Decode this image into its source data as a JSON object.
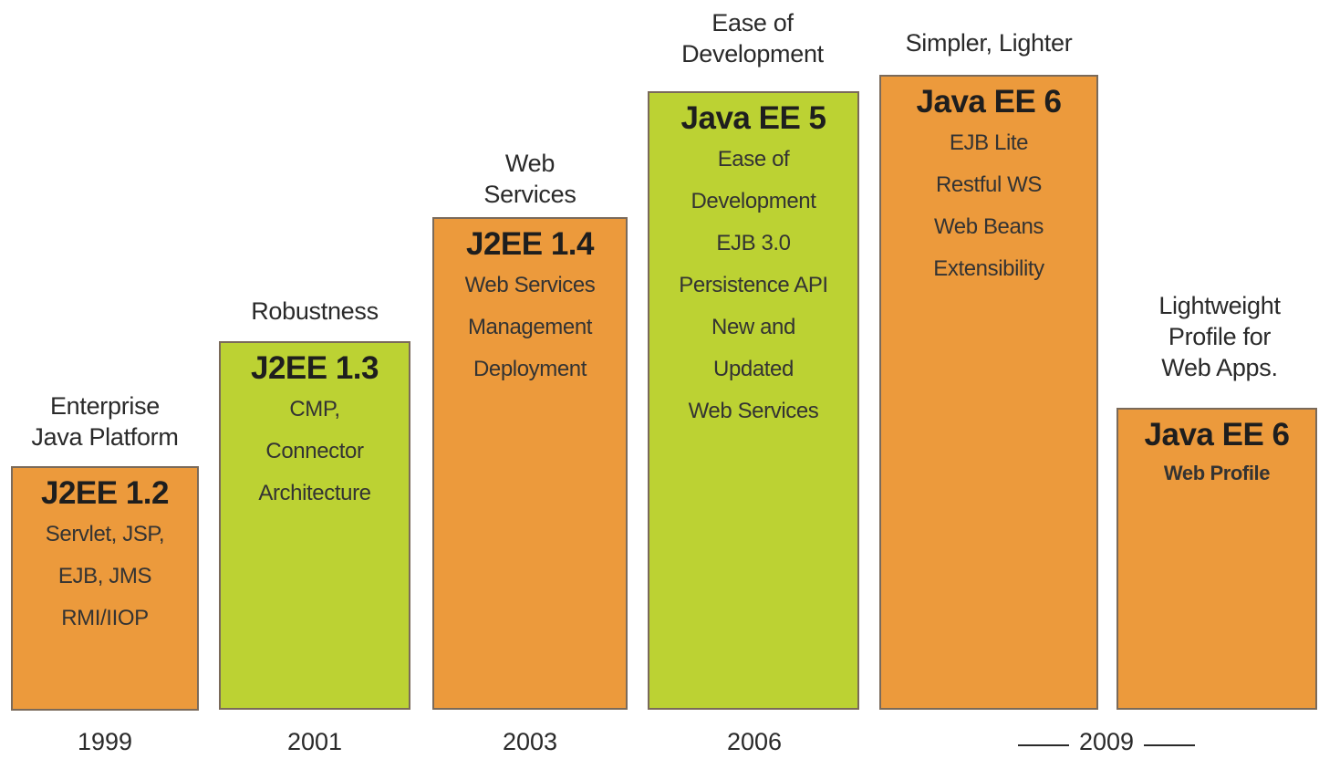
{
  "releases": [
    {
      "theme": "Enterprise\nJava Platform",
      "name": "J2EE 1.2",
      "features": [
        "Servlet, JSP,",
        "EJB, JMS",
        "RMI/IIOP"
      ],
      "year": "1999",
      "color": "#ec9a3c"
    },
    {
      "theme": "Robustness",
      "name": "J2EE 1.3",
      "features": [
        "CMP,",
        "Connector",
        "Architecture"
      ],
      "year": "2001",
      "color": "#bcd233"
    },
    {
      "theme": "Web\nServices",
      "name": "J2EE 1.4",
      "features": [
        "Web Services",
        "Management",
        "Deployment"
      ],
      "year": "2003",
      "color": "#ec9a3c"
    },
    {
      "theme": "Ease of\nDevelopment",
      "name": "Java EE 5",
      "features": [
        "Ease of",
        "Development",
        "EJB 3.0",
        "Persistence API",
        "New and",
        "Updated",
        "Web Services"
      ],
      "year": "2006",
      "color": "#bcd233"
    },
    {
      "theme": "Simpler, Lighter",
      "name": "Java EE 6",
      "features": [
        "EJB Lite",
        "Restful WS",
        "Web Beans",
        "Extensibility"
      ],
      "color": "#ec9a3c"
    },
    {
      "theme": "Lightweight\nProfile for\nWeb Apps.",
      "name": "Java EE 6",
      "features": [
        "Web Profile"
      ],
      "color": "#ec9a3c"
    }
  ],
  "shared_year": "2009"
}
